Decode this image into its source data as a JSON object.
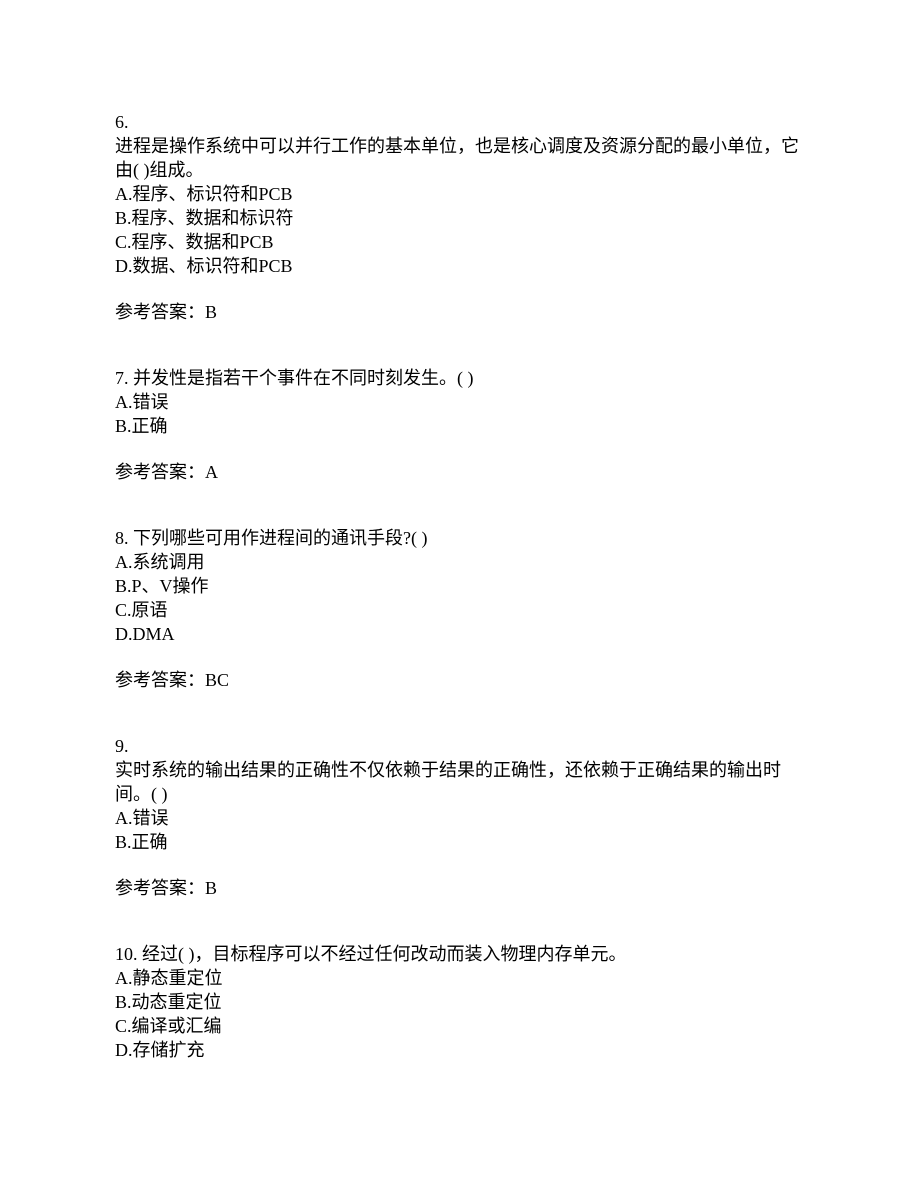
{
  "background_color": "#ffffff",
  "text_color": "#000000",
  "font_size": 18,
  "line_height": 24,
  "questions": [
    {
      "number": "6.",
      "stem": "进程是操作系统中可以并行工作的基本单位，也是核心调度及资源分配的最小单位，它由(  )组成。",
      "options": [
        "A.程序、标识符和PCB",
        "B.程序、数据和标识符",
        "C.程序、数据和PCB",
        "D.数据、标识符和PCB"
      ],
      "answer_label": "参考答案：",
      "answer": "B"
    },
    {
      "number": "7. ",
      "stem": "并发性是指若干个事件在不同时刻发生。(  )",
      "options": [
        "A.错误",
        "B.正确"
      ],
      "answer_label": "参考答案：",
      "answer": "A"
    },
    {
      "number": "8. ",
      "stem": "下列哪些可用作进程间的通讯手段?(  )",
      "options": [
        "A.系统调用",
        "B.P、V操作",
        "C.原语",
        "D.DMA"
      ],
      "answer_label": "参考答案：",
      "answer": "BC"
    },
    {
      "number": "9.",
      "stem": "实时系统的输出结果的正确性不仅依赖于结果的正确性，还依赖于正确结果的输出时间。(  )",
      "options": [
        "A.错误",
        "B.正确"
      ],
      "answer_label": "参考答案：",
      "answer": "B"
    },
    {
      "number": "10. ",
      "stem": "经过(  )，目标程序可以不经过任何改动而装入物理内存单元。",
      "options": [
        "A.静态重定位",
        "B.动态重定位",
        "C.编译或汇编",
        "D.存储扩充"
      ],
      "answer_label": "",
      "answer": ""
    }
  ]
}
